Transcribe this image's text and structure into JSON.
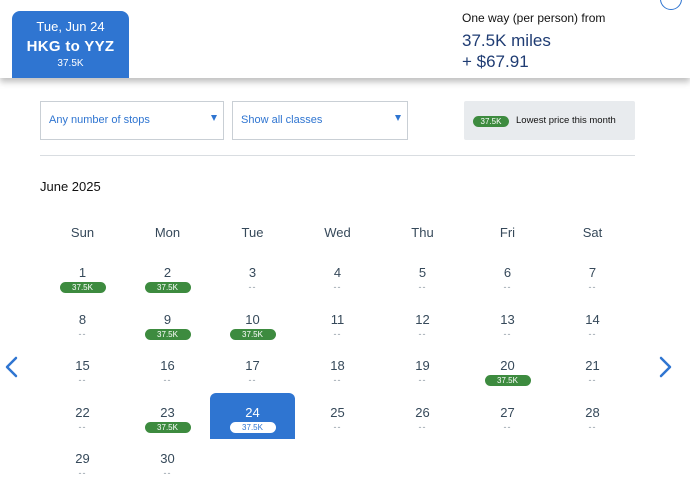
{
  "header": {
    "selected_tab": {
      "date": "Tue, Jun 24",
      "route": "HKG to YYZ",
      "miles": "37.5K"
    },
    "price": {
      "label": "One way (per person) from",
      "miles": "37.5K miles",
      "fee": "+ $67.91"
    }
  },
  "filters": {
    "stops": "Any number of stops",
    "classes": "Show all classes"
  },
  "legend": {
    "badge": "37.5K",
    "text": "Lowest price this month"
  },
  "calendar": {
    "month": "June 2025",
    "weekdays": [
      "Sun",
      "Mon",
      "Tue",
      "Wed",
      "Thu",
      "Fri",
      "Sat"
    ],
    "no_price": "--",
    "days": [
      {
        "day": "1",
        "price": "37.5K"
      },
      {
        "day": "2",
        "price": "37.5K"
      },
      {
        "day": "3",
        "price": ""
      },
      {
        "day": "4",
        "price": ""
      },
      {
        "day": "5",
        "price": ""
      },
      {
        "day": "6",
        "price": ""
      },
      {
        "day": "7",
        "price": ""
      },
      {
        "day": "8",
        "price": ""
      },
      {
        "day": "9",
        "price": "37.5K"
      },
      {
        "day": "10",
        "price": "37.5K"
      },
      {
        "day": "11",
        "price": ""
      },
      {
        "day": "12",
        "price": ""
      },
      {
        "day": "13",
        "price": ""
      },
      {
        "day": "14",
        "price": ""
      },
      {
        "day": "15",
        "price": ""
      },
      {
        "day": "16",
        "price": ""
      },
      {
        "day": "17",
        "price": ""
      },
      {
        "day": "18",
        "price": ""
      },
      {
        "day": "19",
        "price": ""
      },
      {
        "day": "20",
        "price": "37.5K"
      },
      {
        "day": "21",
        "price": ""
      },
      {
        "day": "22",
        "price": ""
      },
      {
        "day": "23",
        "price": "37.5K"
      },
      {
        "day": "24",
        "price": "37.5K",
        "selected": true
      },
      {
        "day": "25",
        "price": ""
      },
      {
        "day": "26",
        "price": ""
      },
      {
        "day": "27",
        "price": ""
      },
      {
        "day": "28",
        "price": ""
      },
      {
        "day": "29",
        "price": ""
      },
      {
        "day": "30",
        "price": ""
      }
    ]
  },
  "colors": {
    "accent": "#2f75d1",
    "price_badge": "#3d8b3f",
    "navy": "#1f3c73"
  },
  "icons": {
    "prev": "chevron-left-icon",
    "next": "chevron-right-icon",
    "dropdown": "caret-down-icon"
  }
}
